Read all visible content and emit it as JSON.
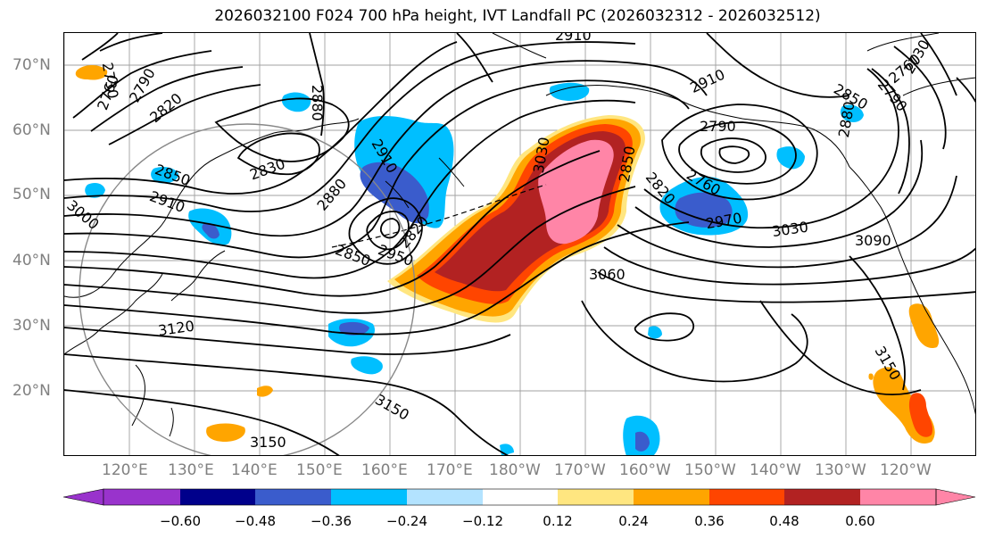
{
  "title": "2026032100 F024 700 hPa height, IVT Landfall PC (2026032312 - 2026032512)",
  "lat_labels": [
    "70°N",
    "60°N",
    "50°N",
    "40°N",
    "30°N",
    "20°N"
  ],
  "lon_labels": [
    "120°E",
    "130°E",
    "140°E",
    "150°E",
    "160°E",
    "170°E",
    "180°W",
    "170°W",
    "160°W",
    "150°W",
    "140°W",
    "130°W",
    "120°W"
  ],
  "contour_labels": [
    "2910",
    "2730",
    "2760",
    "2790",
    "2820",
    "2880",
    "2850",
    "2910",
    "3000",
    "2830",
    "2880",
    "2910",
    "2950",
    "2850",
    "2820",
    "3030",
    "2850",
    "2790",
    "2820",
    "2760",
    "2970",
    "3030",
    "3090",
    "3060",
    "3120",
    "3150",
    "3150",
    "3150",
    "2910",
    "2850",
    "2880",
    "2790",
    "2760",
    "2730"
  ],
  "colorbar": {
    "ticks": [
      "−0.60",
      "−0.48",
      "−0.36",
      "−0.24",
      "−0.12",
      "0.12",
      "0.24",
      "0.36",
      "0.48",
      "0.60"
    ],
    "colors": [
      "#9933cc",
      "#00008b",
      "#3a5ccc",
      "#00bfff",
      "#b3e3ff",
      "#ffffff",
      "#ffe680",
      "#ffa500",
      "#ff4500",
      "#b22222",
      "#ff85a7",
      "#ff85a7"
    ]
  }
}
